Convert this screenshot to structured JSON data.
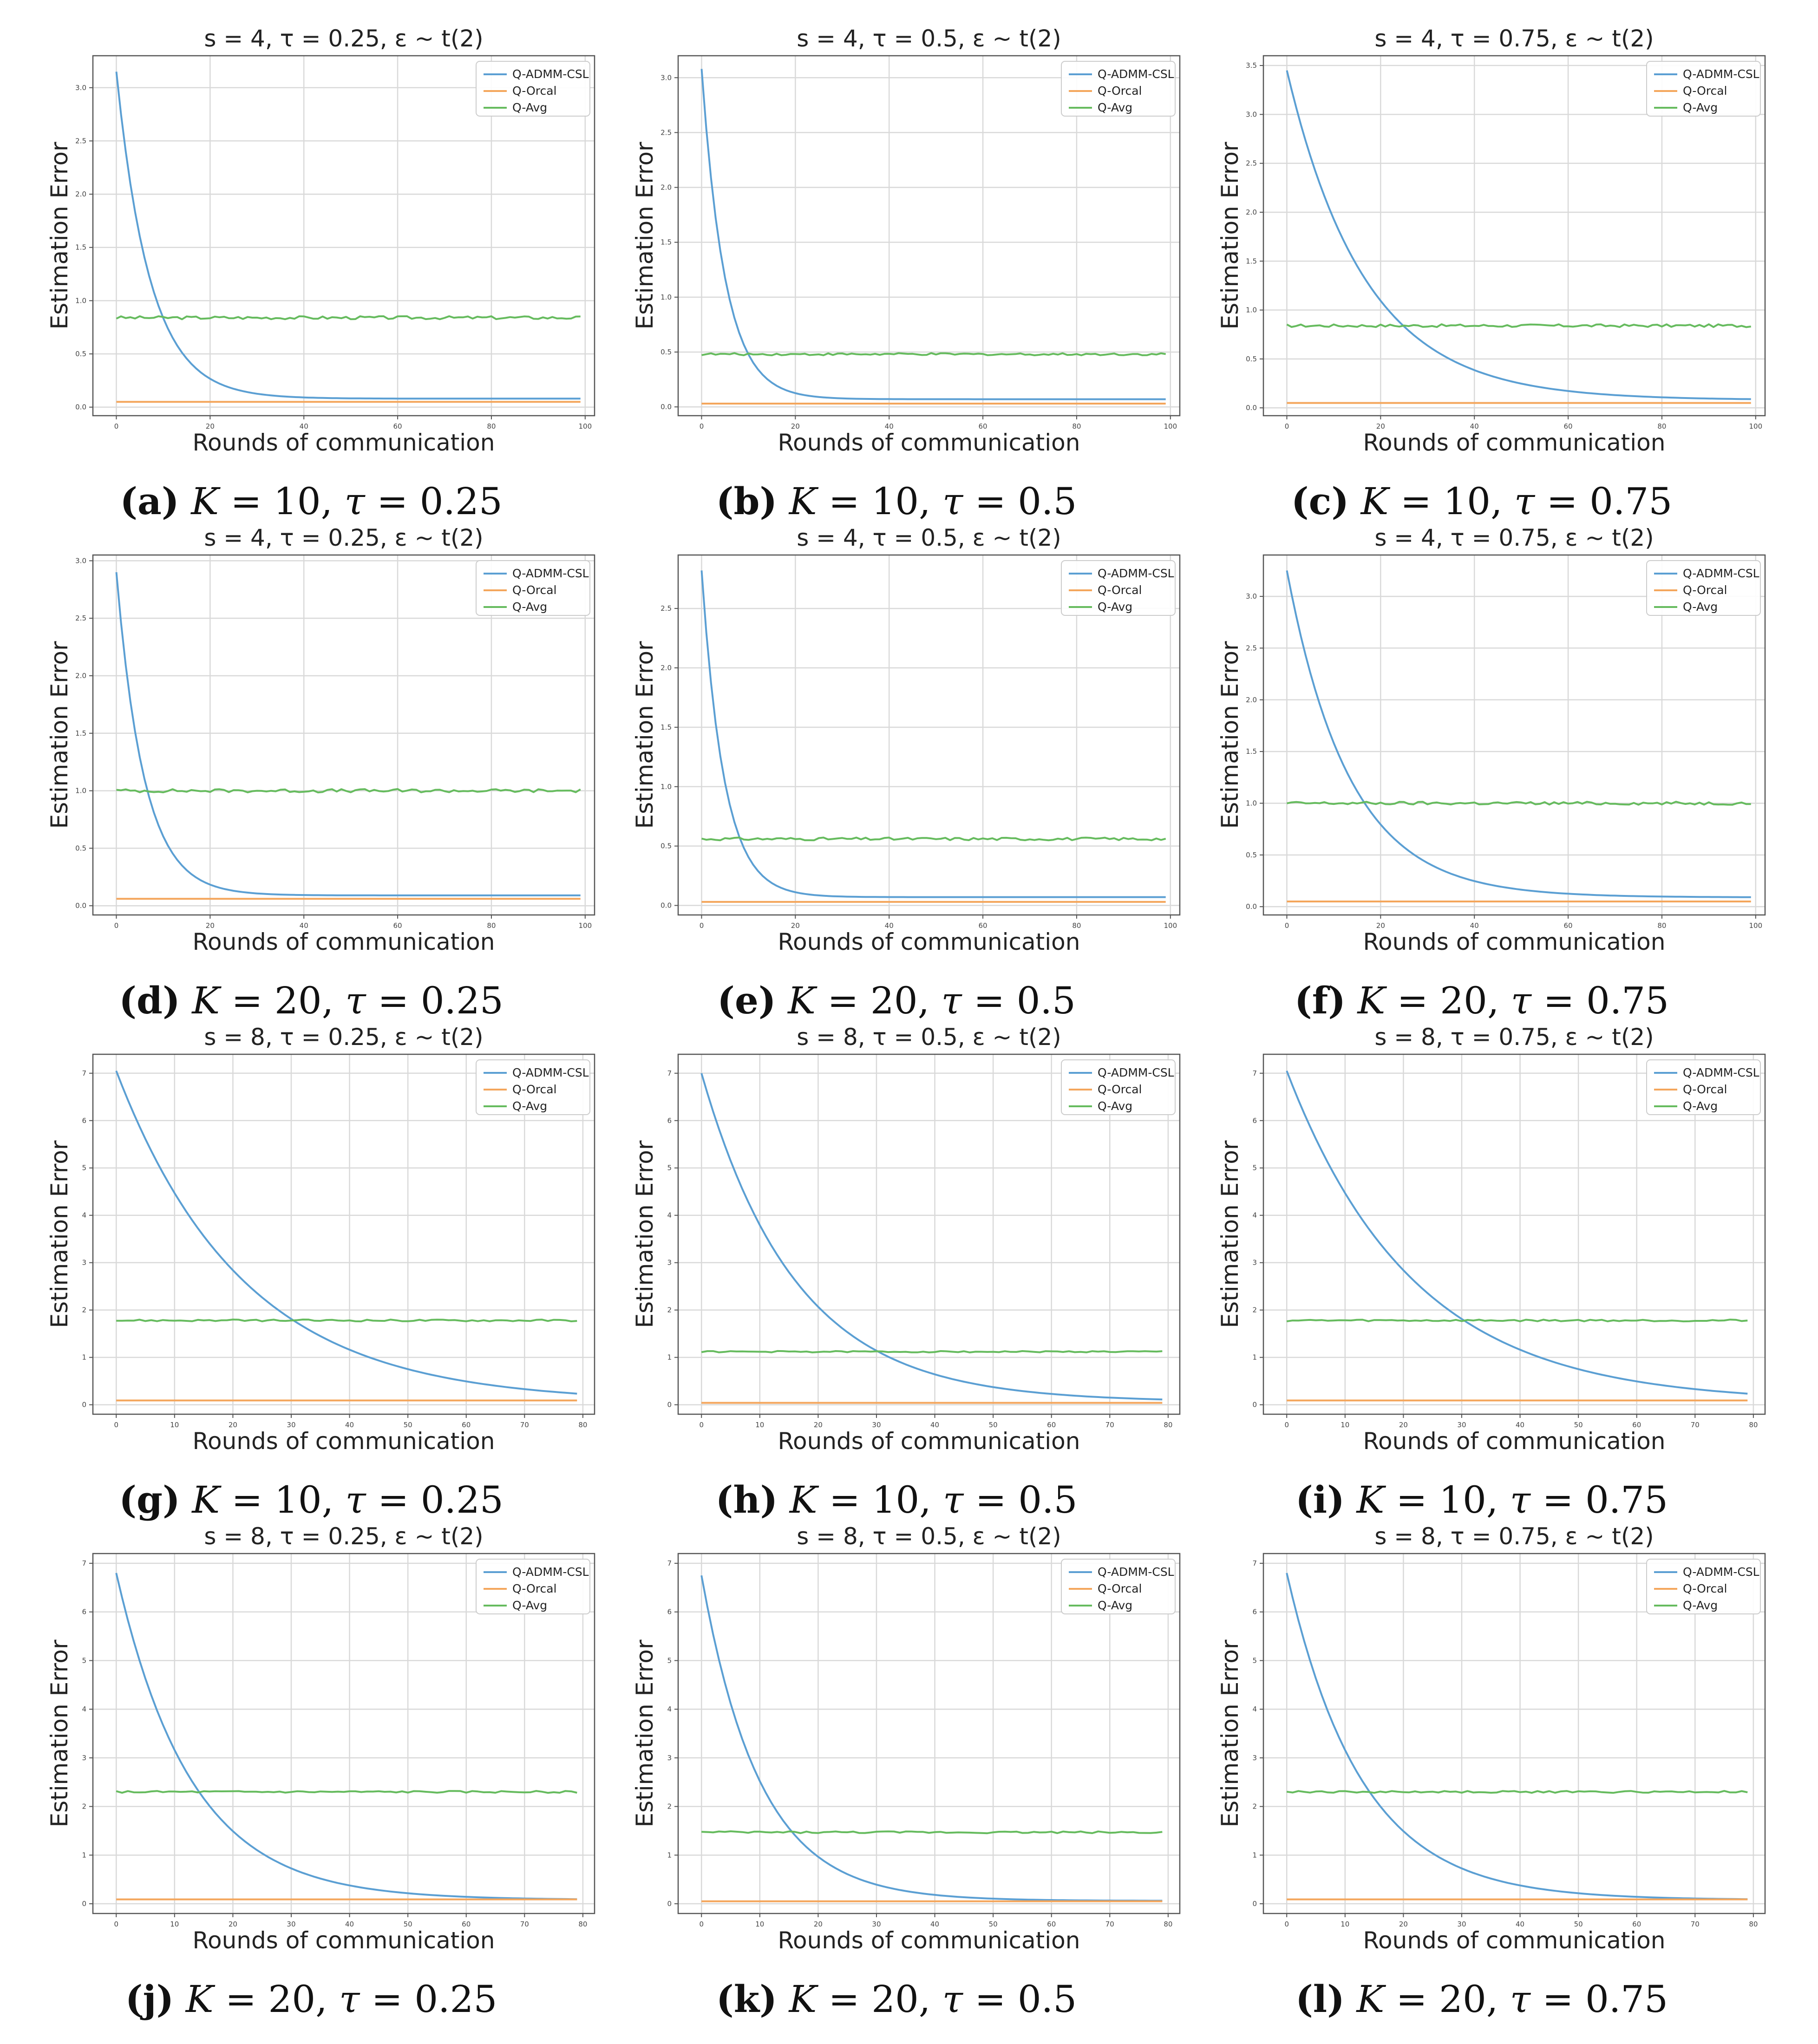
{
  "figure": {
    "series_colors": {
      "Q-ADMM-CSL": "#5b9fd3",
      "Q-Orcal": "#f4a65c",
      "Q-Avg": "#66bb5e"
    }
  },
  "chart_data": [
    {
      "type": "line",
      "title": "s = 4, τ = 0.25, ε ~ t(2)",
      "xlabel": "Rounds of communication",
      "ylabel": "Estimation Error",
      "xlim": [
        -5,
        102
      ],
      "ylim": [
        -0.08,
        3.3
      ],
      "xticks": [
        0,
        20,
        40,
        60,
        80,
        100
      ],
      "yticks": [
        0.0,
        0.5,
        1.0,
        1.5,
        2.0,
        2.5,
        3.0
      ],
      "grid": true,
      "legend": "top-right",
      "x_count": 100,
      "series": [
        {
          "name": "Q-ADMM-CSL",
          "start": 3.15,
          "final": 0.08,
          "rate": 0.14
        },
        {
          "name": "Q-Orcal",
          "level": 0.05
        },
        {
          "name": "Q-Avg",
          "level": 0.84,
          "noise": 0.015
        }
      ],
      "caption": {
        "letter": "(a)",
        "K": "10",
        "tau": "0.25"
      }
    },
    {
      "type": "line",
      "title": "s = 4, τ = 0.5, ε ~ t(2)",
      "xlabel": "Rounds of communication",
      "ylabel": "Estimation Error",
      "xlim": [
        -5,
        102
      ],
      "ylim": [
        -0.08,
        3.2
      ],
      "xticks": [
        0,
        20,
        40,
        60,
        80,
        100
      ],
      "yticks": [
        0.0,
        0.5,
        1.0,
        1.5,
        2.0,
        2.5,
        3.0
      ],
      "grid": true,
      "legend": "top-right",
      "x_count": 100,
      "series": [
        {
          "name": "Q-ADMM-CSL",
          "start": 3.08,
          "final": 0.07,
          "rate": 0.2
        },
        {
          "name": "Q-Orcal",
          "level": 0.03
        },
        {
          "name": "Q-Avg",
          "level": 0.48,
          "noise": 0.01
        }
      ],
      "caption": {
        "letter": "(b)",
        "K": "10",
        "tau": "0.5"
      }
    },
    {
      "type": "line",
      "title": "s = 4, τ = 0.75, ε ~ t(2)",
      "xlabel": "Rounds of communication",
      "ylabel": "Estimation Error",
      "xlim": [
        -5,
        102
      ],
      "ylim": [
        -0.08,
        3.6
      ],
      "xticks": [
        0,
        20,
        40,
        60,
        80,
        100
      ],
      "yticks": [
        0.0,
        0.5,
        1.0,
        1.5,
        2.0,
        2.5,
        3.0,
        3.5
      ],
      "grid": true,
      "legend": "top-right",
      "x_count": 100,
      "series": [
        {
          "name": "Q-ADMM-CSL",
          "start": 3.45,
          "final": 0.08,
          "rate": 0.06
        },
        {
          "name": "Q-Orcal",
          "level": 0.05
        },
        {
          "name": "Q-Avg",
          "level": 0.84,
          "noise": 0.015
        }
      ],
      "caption": {
        "letter": "(c)",
        "K": "10",
        "tau": "0.75"
      }
    },
    {
      "type": "line",
      "title": "s = 4, τ = 0.25, ε ~ t(2)",
      "xlabel": "Rounds of communication",
      "ylabel": "Estimation Error",
      "xlim": [
        -5,
        102
      ],
      "ylim": [
        -0.08,
        3.05
      ],
      "xticks": [
        0,
        20,
        40,
        60,
        80,
        100
      ],
      "yticks": [
        0.0,
        0.5,
        1.0,
        1.5,
        2.0,
        2.5,
        3.0
      ],
      "grid": true,
      "legend": "top-right",
      "x_count": 100,
      "series": [
        {
          "name": "Q-ADMM-CSL",
          "start": 2.9,
          "final": 0.09,
          "rate": 0.17
        },
        {
          "name": "Q-Orcal",
          "level": 0.06
        },
        {
          "name": "Q-Avg",
          "level": 1.0,
          "noise": 0.015
        }
      ],
      "caption": {
        "letter": "(d)",
        "K": "20",
        "tau": "0.25"
      }
    },
    {
      "type": "line",
      "title": "s = 4, τ = 0.5, ε ~ t(2)",
      "xlabel": "Rounds of communication",
      "ylabel": "Estimation Error",
      "xlim": [
        -5,
        102
      ],
      "ylim": [
        -0.08,
        2.95
      ],
      "xticks": [
        0,
        20,
        40,
        60,
        80,
        100
      ],
      "yticks": [
        0.0,
        0.5,
        1.0,
        1.5,
        2.0,
        2.5
      ],
      "grid": true,
      "legend": "top-right",
      "x_count": 100,
      "series": [
        {
          "name": "Q-ADMM-CSL",
          "start": 2.82,
          "final": 0.07,
          "rate": 0.21
        },
        {
          "name": "Q-Orcal",
          "level": 0.03
        },
        {
          "name": "Q-Avg",
          "level": 0.56,
          "noise": 0.012
        }
      ],
      "caption": {
        "letter": "(e)",
        "K": "20",
        "tau": "0.5"
      }
    },
    {
      "type": "line",
      "title": "s = 4, τ = 0.75, ε ~ t(2)",
      "xlabel": "Rounds of communication",
      "ylabel": "Estimation Error",
      "xlim": [
        -5,
        102
      ],
      "ylim": [
        -0.08,
        3.4
      ],
      "xticks": [
        0,
        20,
        40,
        60,
        80,
        100
      ],
      "yticks": [
        0.0,
        0.5,
        1.0,
        1.5,
        2.0,
        2.5,
        3.0
      ],
      "grid": true,
      "legend": "top-right",
      "x_count": 100,
      "series": [
        {
          "name": "Q-ADMM-CSL",
          "start": 3.25,
          "final": 0.09,
          "rate": 0.075
        },
        {
          "name": "Q-Orcal",
          "level": 0.05
        },
        {
          "name": "Q-Avg",
          "level": 1.0,
          "noise": 0.015
        }
      ],
      "caption": {
        "letter": "(f)",
        "K": "20",
        "tau": "0.75"
      }
    },
    {
      "type": "line",
      "title": "s = 8, τ = 0.25, ε ~ t(2)",
      "xlabel": "Rounds of communication",
      "ylabel": "Estimation Error",
      "xlim": [
        -4,
        82
      ],
      "ylim": [
        -0.2,
        7.4
      ],
      "xticks": [
        0,
        10,
        20,
        30,
        40,
        50,
        60,
        70,
        80
      ],
      "yticks": [
        0,
        1,
        2,
        3,
        4,
        5,
        6,
        7
      ],
      "grid": true,
      "legend": "top-right",
      "x_count": 80,
      "series": [
        {
          "name": "Q-ADMM-CSL",
          "start": 7.05,
          "final": 0.05,
          "rate": 0.046
        },
        {
          "name": "Q-Orcal",
          "level": 0.09
        },
        {
          "name": "Q-Avg",
          "level": 1.78,
          "noise": 0.02
        }
      ],
      "caption": {
        "letter": "(g)",
        "K": "10",
        "tau": "0.25"
      }
    },
    {
      "type": "line",
      "title": "s = 8, τ = 0.5, ε ~ t(2)",
      "xlabel": "Rounds of communication",
      "ylabel": "Estimation Error",
      "xlim": [
        -4,
        82
      ],
      "ylim": [
        -0.2,
        7.4
      ],
      "xticks": [
        0,
        10,
        20,
        30,
        40,
        50,
        60,
        70,
        80
      ],
      "yticks": [
        0,
        1,
        2,
        3,
        4,
        5,
        6,
        7
      ],
      "grid": true,
      "legend": "top-right",
      "x_count": 80,
      "series": [
        {
          "name": "Q-ADMM-CSL",
          "start": 7.0,
          "final": 0.06,
          "rate": 0.062
        },
        {
          "name": "Q-Orcal",
          "level": 0.04
        },
        {
          "name": "Q-Avg",
          "level": 1.12,
          "noise": 0.015
        }
      ],
      "caption": {
        "letter": "(h)",
        "K": "10",
        "tau": "0.5"
      }
    },
    {
      "type": "line",
      "title": "s = 8, τ = 0.75, ε ~ t(2)",
      "xlabel": "Rounds of communication",
      "ylabel": "Estimation Error",
      "xlim": [
        -4,
        82
      ],
      "ylim": [
        -0.2,
        7.4
      ],
      "xticks": [
        0,
        10,
        20,
        30,
        40,
        50,
        60,
        70,
        80
      ],
      "yticks": [
        0,
        1,
        2,
        3,
        4,
        5,
        6,
        7
      ],
      "grid": true,
      "legend": "top-right",
      "x_count": 80,
      "series": [
        {
          "name": "Q-ADMM-CSL",
          "start": 7.05,
          "final": 0.05,
          "rate": 0.046
        },
        {
          "name": "Q-Orcal",
          "level": 0.09
        },
        {
          "name": "Q-Avg",
          "level": 1.78,
          "noise": 0.02
        }
      ],
      "caption": {
        "letter": "(i)",
        "K": "10",
        "tau": "0.75"
      }
    },
    {
      "type": "line",
      "title": "s = 8, τ = 0.25, ε ~ t(2)",
      "xlabel": "Rounds of communication",
      "ylabel": "Estimation Error",
      "xlim": [
        -4,
        82
      ],
      "ylim": [
        -0.2,
        7.2
      ],
      "xticks": [
        0,
        10,
        20,
        30,
        40,
        50,
        60,
        70,
        80
      ],
      "yticks": [
        0,
        1,
        2,
        3,
        4,
        5,
        6,
        7
      ],
      "grid": true,
      "legend": "top-right",
      "x_count": 80,
      "series": [
        {
          "name": "Q-ADMM-CSL",
          "start": 6.8,
          "final": 0.08,
          "rate": 0.078
        },
        {
          "name": "Q-Orcal",
          "level": 0.09
        },
        {
          "name": "Q-Avg",
          "level": 2.3,
          "noise": 0.02
        }
      ],
      "caption": {
        "letter": "(j)",
        "K": "20",
        "tau": "0.25"
      }
    },
    {
      "type": "line",
      "title": "s = 8, τ = 0.5, ε ~ t(2)",
      "xlabel": "Rounds of communication",
      "ylabel": "Estimation Error",
      "xlim": [
        -4,
        82
      ],
      "ylim": [
        -0.2,
        7.2
      ],
      "xticks": [
        0,
        10,
        20,
        30,
        40,
        50,
        60,
        70,
        80
      ],
      "yticks": [
        0,
        1,
        2,
        3,
        4,
        5,
        6,
        7
      ],
      "grid": true,
      "legend": "top-right",
      "x_count": 80,
      "series": [
        {
          "name": "Q-ADMM-CSL",
          "start": 6.75,
          "final": 0.06,
          "rate": 0.1
        },
        {
          "name": "Q-Orcal",
          "level": 0.05
        },
        {
          "name": "Q-Avg",
          "level": 1.47,
          "noise": 0.02
        }
      ],
      "caption": {
        "letter": "(k)",
        "K": "20",
        "tau": "0.5"
      }
    },
    {
      "type": "line",
      "title": "s = 8, τ = 0.75, ε ~ t(2)",
      "xlabel": "Rounds of communication",
      "ylabel": "Estimation Error",
      "xlim": [
        -4,
        82
      ],
      "ylim": [
        -0.2,
        7.2
      ],
      "xticks": [
        0,
        10,
        20,
        30,
        40,
        50,
        60,
        70,
        80
      ],
      "yticks": [
        0,
        1,
        2,
        3,
        4,
        5,
        6,
        7
      ],
      "grid": true,
      "legend": "top-right",
      "x_count": 80,
      "series": [
        {
          "name": "Q-ADMM-CSL",
          "start": 6.8,
          "final": 0.08,
          "rate": 0.078
        },
        {
          "name": "Q-Orcal",
          "level": 0.09
        },
        {
          "name": "Q-Avg",
          "level": 2.3,
          "noise": 0.02
        }
      ],
      "caption": {
        "letter": "(l)",
        "K": "20",
        "tau": "0.75"
      }
    }
  ]
}
